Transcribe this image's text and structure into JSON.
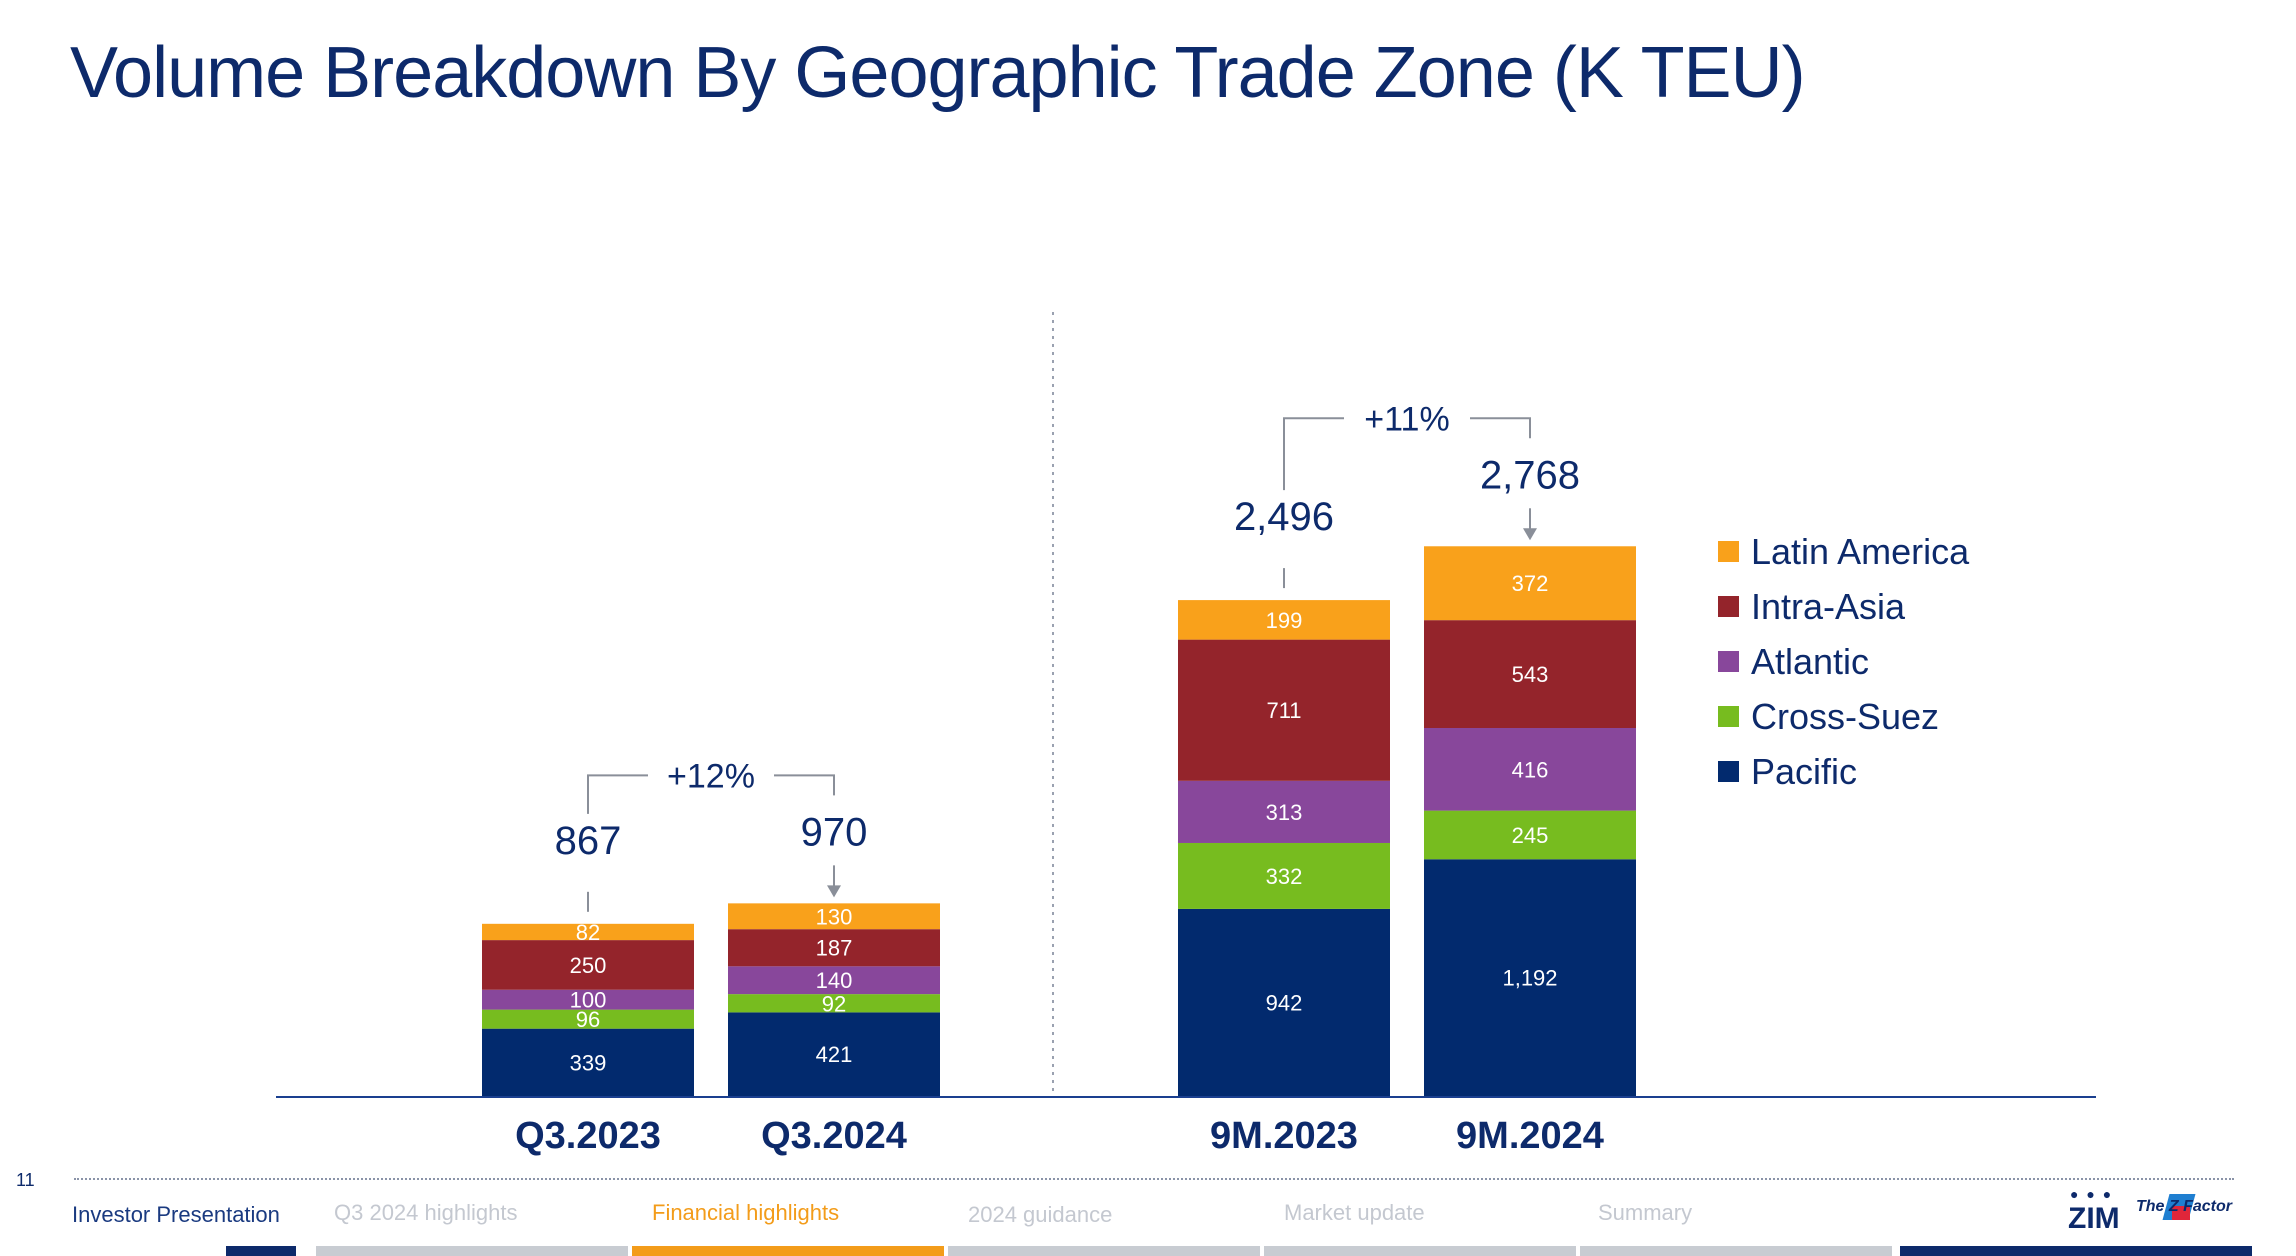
{
  "title": "Volume Breakdown By Geographic Trade Zone (K TEU)",
  "legend": [
    {
      "label": "Latin America",
      "color": "#F9A11B"
    },
    {
      "label": "Intra-Asia",
      "color": "#94242B"
    },
    {
      "label": "Atlantic",
      "color": "#88479B"
    },
    {
      "label": "Cross-Suez",
      "color": "#77BC1F"
    },
    {
      "label": "Pacific",
      "color": "#022A6E"
    }
  ],
  "chart_data": {
    "type": "bar",
    "stacked": true,
    "categories": [
      "Q3.2023",
      "Q3.2024",
      "9M.2023",
      "9M.2024"
    ],
    "series": [
      {
        "name": "Pacific",
        "color": "#022A6E",
        "values": [
          339,
          421,
          942,
          1192
        ],
        "labels": [
          "339",
          "421",
          "942",
          "1,192"
        ]
      },
      {
        "name": "Cross-Suez",
        "color": "#77BC1F",
        "values": [
          96,
          92,
          332,
          245
        ],
        "labels": [
          "96",
          "92",
          "332",
          "245"
        ]
      },
      {
        "name": "Atlantic",
        "color": "#88479B",
        "values": [
          100,
          140,
          313,
          416
        ],
        "labels": [
          "100",
          "140",
          "313",
          "416"
        ]
      },
      {
        "name": "Intra-Asia",
        "color": "#94242B",
        "values": [
          250,
          187,
          711,
          543
        ],
        "labels": [
          "250",
          "187",
          "711",
          "543"
        ]
      },
      {
        "name": "Latin America",
        "color": "#F9A11B",
        "values": [
          82,
          130,
          199,
          372
        ],
        "labels": [
          "82",
          "130",
          "199",
          "372"
        ]
      }
    ],
    "totals": [
      867,
      970,
      2496,
      2768
    ],
    "total_labels": [
      "867",
      "970",
      "2,496",
      "2,768"
    ],
    "growth": [
      {
        "from": "Q3.2023",
        "to": "Q3.2024",
        "label": "+12%"
      },
      {
        "from": "9M.2023",
        "to": "9M.2024",
        "label": "+11%"
      }
    ],
    "legend_position": "right"
  },
  "footer": {
    "page_number": "11",
    "nav": [
      {
        "label": "Investor Presentation",
        "state": "home"
      },
      {
        "label": "Q3 2024 highlights",
        "state": "inactive"
      },
      {
        "label": "Financial highlights",
        "state": "current"
      },
      {
        "label": "2024 guidance",
        "state": "inactive"
      },
      {
        "label": "Market update",
        "state": "inactive"
      },
      {
        "label": "Summary",
        "state": "inactive"
      }
    ],
    "logo_text": "ZIM",
    "logo_tagline": "The Z Factor"
  }
}
